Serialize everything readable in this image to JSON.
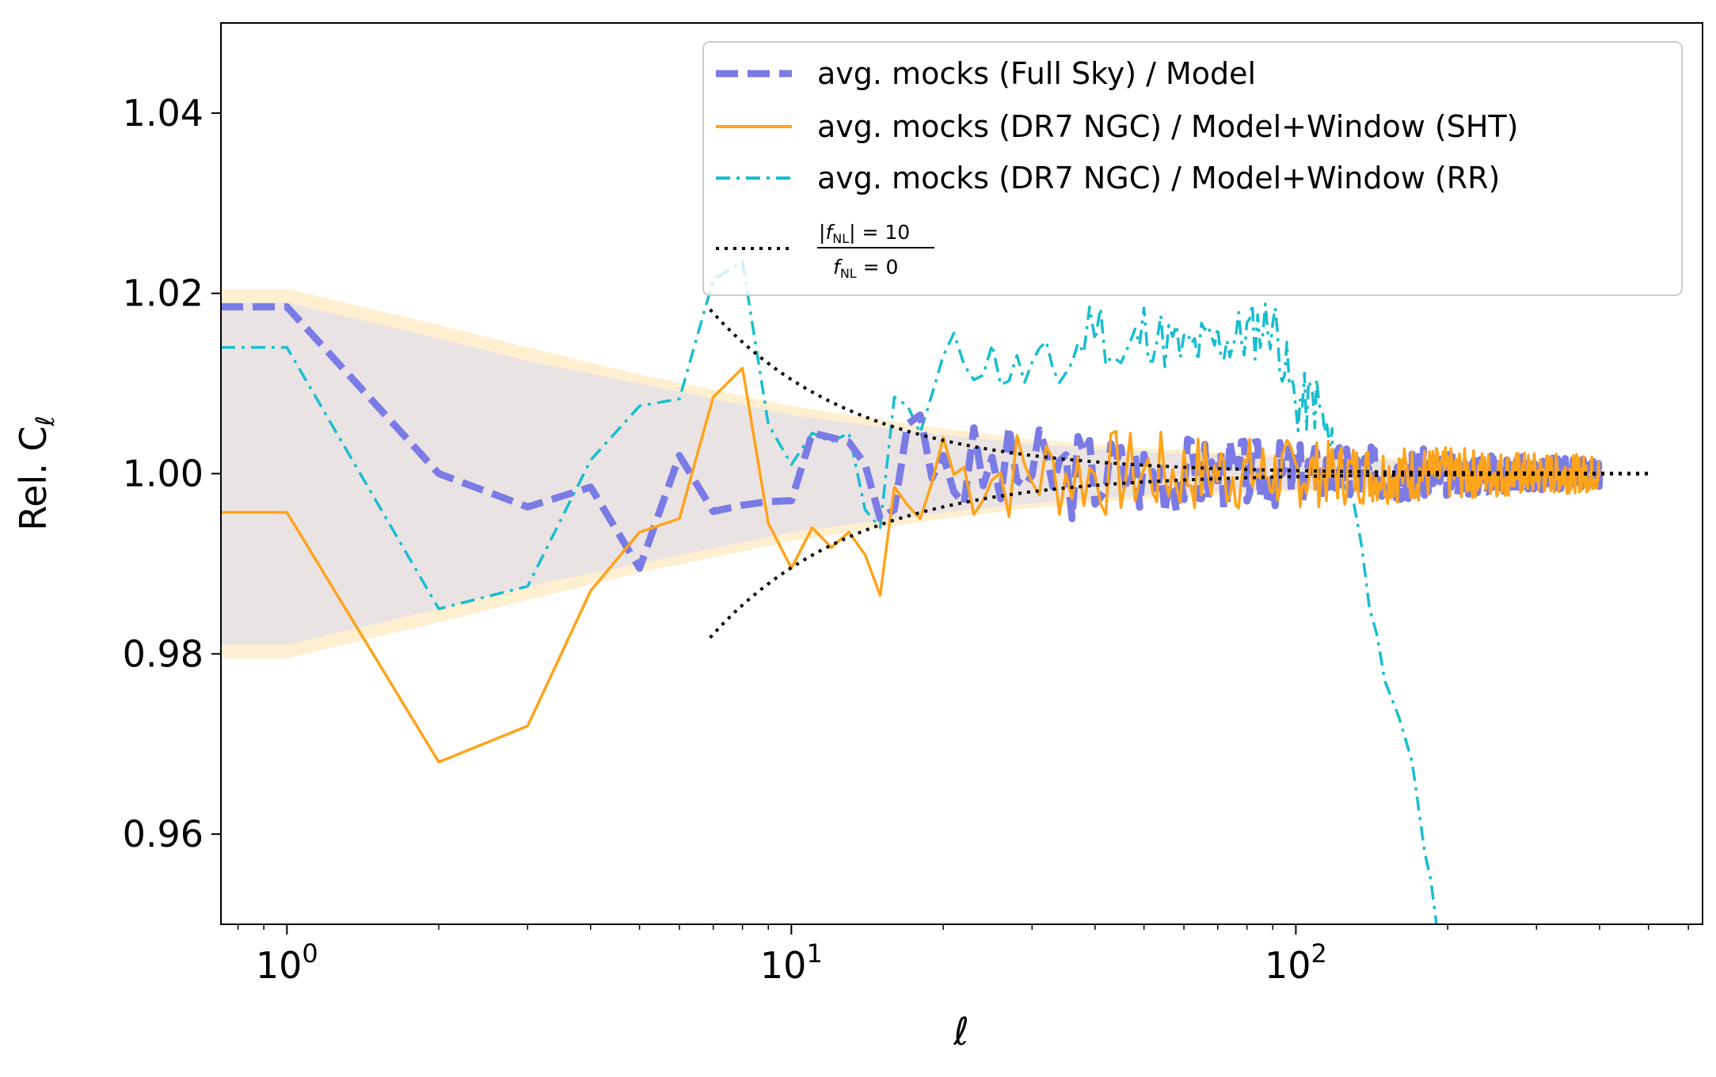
{
  "chart_data": {
    "type": "line",
    "xscale": "log",
    "xlim": [
      0.74,
      640
    ],
    "ylim": [
      0.95,
      1.05
    ],
    "xlabel": "ℓ",
    "ylabel": "Rel. C",
    "ylabel_sub": "ℓ",
    "x_ticks": [
      {
        "base": "10",
        "exp": "0",
        "value": 1
      },
      {
        "base": "10",
        "exp": "1",
        "value": 10
      },
      {
        "base": "10",
        "exp": "2",
        "value": 100
      }
    ],
    "y_ticks": [
      "0.96",
      "0.98",
      "1.00",
      "1.02",
      "1.04"
    ],
    "legend": {
      "placement": "top-right",
      "entries": [
        "avg. mocks (Full Sky) / Model",
        "avg. mocks (DR7 NGC) / Model+Window (SHT)",
        "avg. mocks (DR7 NGC) / Model+Window (RR)"
      ],
      "fraction_entry": {
        "numerator": "|f",
        "numerator_sub": "NL",
        "numerator_rest": "| = 10",
        "denominator": "f",
        "denominator_sub": "NL",
        "denominator_rest": " = 0"
      }
    },
    "colors": {
      "full_sky": "#7b7be6",
      "sht": "#ffa31a",
      "rr": "#17becf",
      "fnl": "#000000",
      "band_outer": "#ffe9c2",
      "band_inner": "#e6e0e6"
    },
    "bands": [
      {
        "name": "outer",
        "x": [
          0.74,
          1,
          2,
          3,
          5,
          10,
          20,
          30,
          50,
          100,
          200,
          400
        ],
        "lower": [
          0.9795,
          0.9795,
          0.9835,
          0.986,
          0.989,
          0.9925,
          0.995,
          0.9962,
          0.9972,
          0.998,
          0.9985,
          0.9988
        ],
        "upper": [
          1.0205,
          1.0205,
          1.0165,
          1.014,
          1.011,
          1.0075,
          1.005,
          1.0038,
          1.0028,
          1.002,
          1.0015,
          1.0012
        ]
      },
      {
        "name": "inner",
        "x": [
          0.74,
          1,
          2,
          3,
          5,
          10,
          20,
          30,
          50,
          100,
          200,
          400
        ],
        "lower": [
          0.981,
          0.981,
          0.985,
          0.9875,
          0.99,
          0.9935,
          0.9957,
          0.9967,
          0.9976,
          0.9983,
          0.9987,
          0.999
        ],
        "upper": [
          1.019,
          1.019,
          1.015,
          1.0125,
          1.01,
          1.0065,
          1.0043,
          1.0033,
          1.0024,
          1.0017,
          1.0013,
          1.001
        ]
      }
    ],
    "series": [
      {
        "key": "full_sky",
        "x": [
          0.74,
          1,
          2,
          3,
          4,
          5,
          6,
          7,
          8,
          9,
          10,
          11,
          12,
          13,
          14,
          15,
          16,
          17,
          18,
          19,
          20
        ],
        "y": [
          1.0185,
          1.0185,
          1.0,
          0.9963,
          0.9985,
          0.9895,
          1.002,
          0.9958,
          0.9965,
          0.9969,
          0.997,
          1.0045,
          1.004,
          1.0035,
          1.001,
          0.995,
          0.996,
          1.0055,
          1.0065,
          0.9995,
          1.002
        ],
        "noise": {
          "from": 21,
          "to": 400,
          "amp_start": 0.006,
          "amp_end": 0.0015,
          "seed": 3
        }
      },
      {
        "key": "sht",
        "x": [
          0.74,
          1,
          2,
          3,
          4,
          5,
          6,
          7,
          8,
          9,
          10,
          11,
          12,
          13,
          14,
          15,
          16,
          17,
          18,
          19,
          20
        ],
        "y": [
          0.9957,
          0.9957,
          0.968,
          0.972,
          0.987,
          0.9935,
          0.995,
          1.0085,
          1.0117,
          0.9945,
          0.9895,
          0.994,
          0.9918,
          0.9935,
          0.991,
          0.9865,
          0.9985,
          0.9965,
          0.995,
          0.999,
          1.004
        ],
        "noise": {
          "from": 21,
          "to": 400,
          "amp_start": 0.006,
          "amp_end": 0.002,
          "seed": 7
        }
      },
      {
        "key": "rr",
        "x": [
          0.74,
          1,
          2,
          3,
          4,
          5,
          6,
          7,
          8,
          9,
          10,
          11,
          12,
          13,
          14,
          15,
          16,
          17,
          18,
          19,
          20,
          22,
          25,
          28,
          30,
          35,
          40,
          45,
          50,
          60,
          70,
          80,
          90,
          100,
          110,
          120,
          125,
          130,
          135,
          140,
          145,
          150,
          160,
          170,
          180,
          185,
          190
        ],
        "y": [
          1.014,
          1.014,
          0.985,
          0.9875,
          1.0015,
          1.0075,
          1.0083,
          1.0215,
          1.0235,
          1.0055,
          1.001,
          1.0045,
          1.0035,
          1.0045,
          0.996,
          0.994,
          1.0085,
          1.0075,
          1.0045,
          1.0088,
          1.012,
          1.0135,
          1.0125,
          1.011,
          1.0115,
          1.0115,
          1.0175,
          1.012,
          1.016,
          1.0135,
          1.0145,
          1.0155,
          1.017,
          1.0075,
          1.008,
          1.0005,
          0.9985,
          0.997,
          0.992,
          0.985,
          0.982,
          0.977,
          0.973,
          0.968,
          0.958,
          0.955,
          0.95
        ],
        "noise": {
          "from": 20,
          "to": 120,
          "amp_start": 0.0035,
          "amp_end": 0.0035,
          "seed": 11
        }
      },
      {
        "key": "fnl_upper",
        "fn": "1 + 0.33 / x^1.5",
        "from": 6.9,
        "to": 500
      },
      {
        "key": "fnl_lower",
        "fn": "1 - 0.33 / x^1.5",
        "from": 6.9,
        "to": 500
      }
    ]
  }
}
